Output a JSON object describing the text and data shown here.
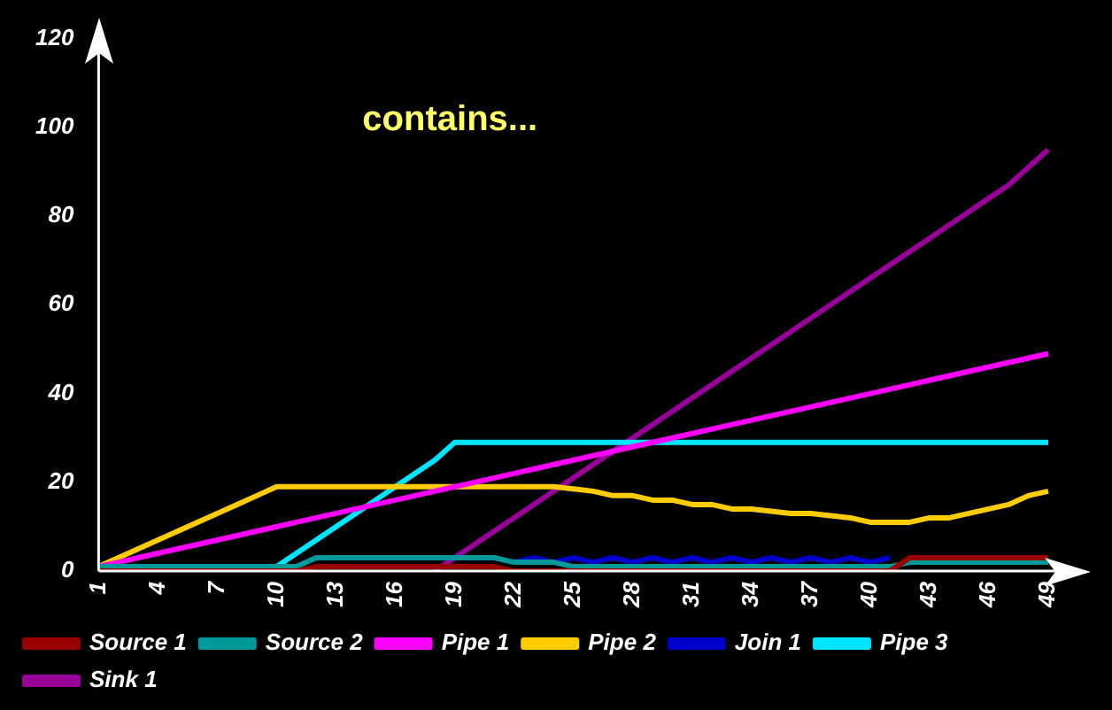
{
  "chart_data": {
    "type": "line",
    "title": "contains...",
    "categories": [
      "1",
      null,
      null,
      "4",
      null,
      null,
      "7",
      null,
      null,
      "10",
      null,
      null,
      "13",
      null,
      null,
      "16",
      null,
      null,
      "19",
      null,
      null,
      "22",
      null,
      null,
      "25",
      null,
      null,
      "28",
      null,
      null,
      "31",
      null,
      null,
      "34",
      null,
      null,
      "37",
      null,
      null,
      "40",
      null,
      null,
      "43",
      null,
      null,
      "46",
      null,
      null,
      "49"
    ],
    "series": [
      {
        "name": "Source 1",
        "color": "#990000",
        "values": [
          0,
          0,
          0,
          0,
          0,
          0,
          0,
          0,
          0,
          0,
          0,
          1,
          1,
          1,
          1,
          1,
          1,
          1,
          1,
          1,
          1,
          0,
          0,
          0,
          0,
          0,
          0,
          0,
          0,
          0,
          0,
          0,
          0,
          0,
          0,
          0,
          0,
          0,
          0,
          0,
          0,
          3,
          3,
          3,
          3,
          3,
          3,
          3,
          3
        ]
      },
      {
        "name": "Source 2",
        "color": "#009999",
        "values": [
          1,
          1,
          1,
          1,
          1,
          1,
          1,
          1,
          1,
          1,
          1,
          3,
          3,
          3,
          3,
          3,
          3,
          3,
          3,
          3,
          3,
          2,
          2,
          2,
          1,
          1,
          1,
          1,
          1,
          1,
          1,
          1,
          1,
          1,
          1,
          1,
          1,
          1,
          1,
          1,
          1,
          2,
          2,
          2,
          2,
          2,
          2,
          2,
          2
        ]
      },
      {
        "name": "Pipe 1",
        "color": "#ff00ff",
        "values": [
          1,
          2,
          3,
          4,
          5,
          6,
          7,
          8,
          9,
          10,
          11,
          12,
          13,
          14,
          15,
          16,
          17,
          18,
          19,
          20,
          21,
          22,
          23,
          24,
          25,
          26,
          27,
          28,
          29,
          30,
          31,
          32,
          33,
          34,
          35,
          36,
          37,
          38,
          39,
          40,
          41,
          42,
          43,
          44,
          45,
          46,
          47,
          48,
          49
        ]
      },
      {
        "name": "Pipe 2",
        "color": "#ffcc00",
        "values": [
          1,
          3,
          5,
          7,
          9,
          11,
          13,
          15,
          17,
          19,
          19,
          19,
          19,
          19,
          19,
          19,
          19,
          19,
          19,
          19,
          19,
          19,
          19,
          19,
          18.5,
          18,
          17,
          17,
          16,
          16,
          15,
          15,
          14,
          14,
          13.5,
          13,
          13,
          12.5,
          12,
          11,
          11,
          11,
          12,
          12,
          13,
          14,
          15,
          17,
          18
        ]
      },
      {
        "name": "Join 1",
        "color": "#0000cc",
        "values": [
          null,
          null,
          null,
          null,
          null,
          null,
          null,
          null,
          null,
          null,
          null,
          null,
          null,
          null,
          null,
          null,
          null,
          null,
          null,
          null,
          null,
          2,
          3,
          2,
          3,
          2,
          3,
          2,
          3,
          2,
          3,
          2,
          3,
          2,
          3,
          2,
          3,
          2,
          3,
          2,
          3,
          null,
          null,
          null,
          null,
          null,
          null,
          null,
          null
        ]
      },
      {
        "name": "Pipe 3",
        "color": "#00e5ff",
        "values": [
          1,
          1,
          1,
          1,
          1,
          1,
          1,
          1,
          1,
          1,
          4,
          7,
          10,
          13,
          16,
          19,
          22,
          25,
          29,
          29,
          29,
          29,
          29,
          29,
          29,
          29,
          29,
          29,
          29,
          29,
          29,
          29,
          29,
          29,
          29,
          29,
          29,
          29,
          29,
          29,
          29,
          29,
          29,
          29,
          29,
          29,
          29,
          29,
          29
        ]
      },
      {
        "name": "Sink 1",
        "color": "#990099",
        "values": [
          null,
          null,
          null,
          null,
          null,
          null,
          null,
          null,
          null,
          null,
          null,
          null,
          null,
          null,
          null,
          null,
          null,
          0,
          3,
          6,
          9,
          12,
          15,
          18,
          21,
          24,
          27,
          30,
          33,
          36,
          39,
          42,
          45,
          48,
          51,
          54,
          57,
          60,
          63,
          66,
          69,
          72,
          75,
          78,
          81,
          84,
          87,
          91,
          95
        ]
      }
    ],
    "ylim": [
      0,
      120
    ],
    "yticks": [
      0,
      20,
      40,
      60,
      80,
      100,
      120
    ],
    "grid": false,
    "legend": "bottom",
    "marker": "none",
    "line_style": "solid"
  }
}
